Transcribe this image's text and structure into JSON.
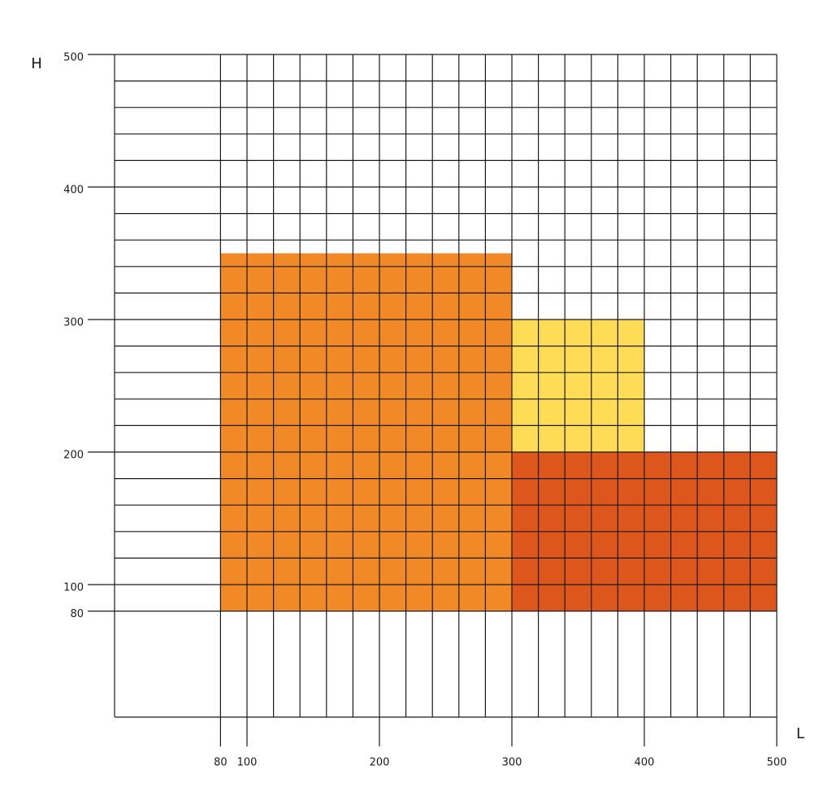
{
  "chart_data": {
    "type": "rect",
    "x_label": "L",
    "y_label": "H",
    "xlim": [
      0,
      500
    ],
    "ylim": [
      0,
      500
    ],
    "xticks": [
      80,
      100,
      200,
      300,
      400,
      500
    ],
    "yticks": [
      80,
      100,
      200,
      300,
      400,
      500
    ],
    "xgrid": [
      0,
      80,
      100,
      120,
      140,
      160,
      180,
      200,
      220,
      240,
      260,
      280,
      300,
      320,
      340,
      360,
      380,
      400,
      420,
      440,
      460,
      480,
      500
    ],
    "ygrid": [
      0,
      80,
      100,
      120,
      140,
      160,
      180,
      200,
      220,
      240,
      260,
      280,
      300,
      320,
      340,
      360,
      380,
      400,
      420,
      440,
      460,
      480,
      500
    ],
    "grid_color": "#1a1a1a",
    "rects": [
      {
        "color": "#f18a26",
        "x": [
          80,
          300
        ],
        "y": [
          80,
          350
        ]
      },
      {
        "color": "#fedc55",
        "x": [
          300,
          400
        ],
        "y": [
          200,
          300
        ]
      },
      {
        "color": "#dd561c",
        "x": [
          300,
          500
        ],
        "y": [
          80,
          200
        ]
      }
    ]
  }
}
